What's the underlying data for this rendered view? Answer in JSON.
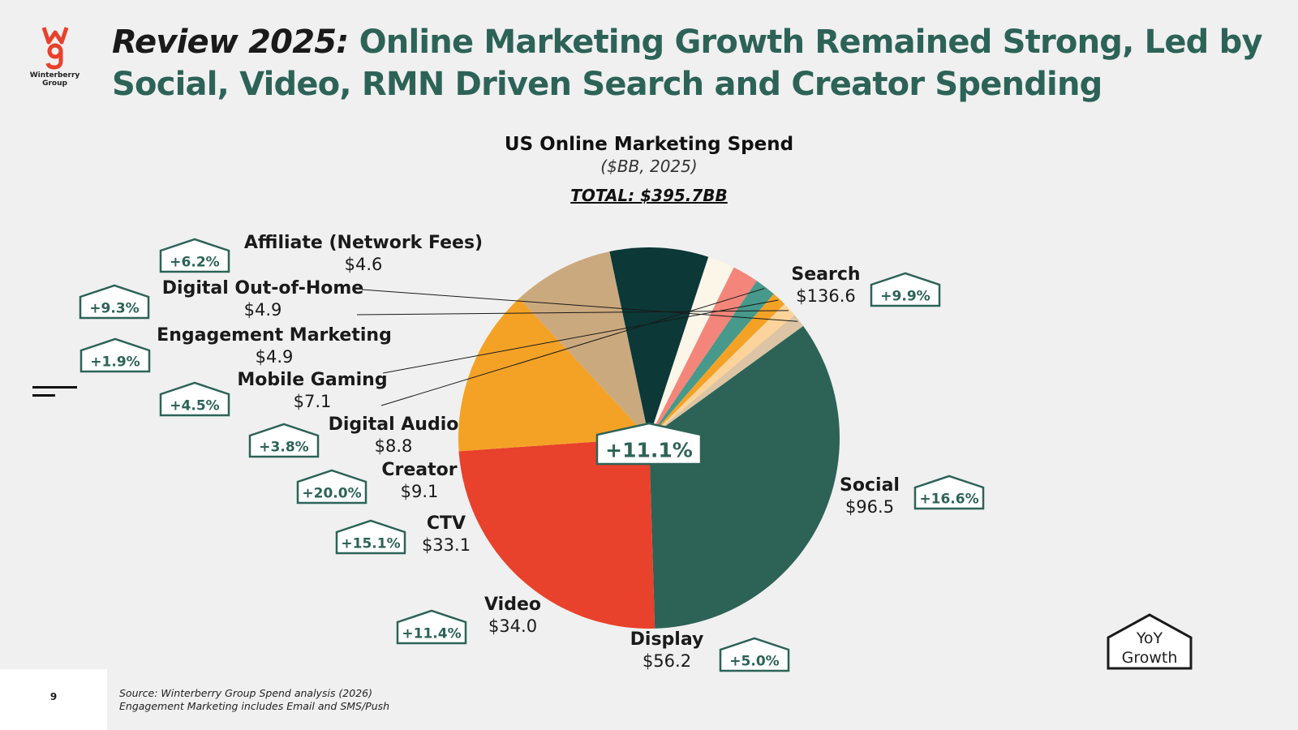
{
  "logo": {
    "mark": "wg",
    "text_line1": "Winterberry",
    "text_line2": "Group"
  },
  "title": {
    "lead": "Review 2025:",
    "rest": " Online Marketing Growth Remained Strong, Led by Social, Video, RMN Driven Search and Creator Spending"
  },
  "colors": {
    "brand_green": "#2d6357",
    "outline_green": "#2d6357"
  },
  "chart_data": {
    "type": "pie",
    "title": "US Online Marketing Spend",
    "subtitle": "($BB, 2025)",
    "total_label": "TOTAL: $395.7BB",
    "center_growth": "+11.1%",
    "slices": [
      {
        "name": "Search",
        "value": 136.6,
        "value_label": "$136.6",
        "growth": "+9.9%",
        "color": "#2d6357"
      },
      {
        "name": "Social",
        "value": 96.5,
        "value_label": "$96.5",
        "growth": "+16.6%",
        "color": "#e8412c"
      },
      {
        "name": "Display",
        "value": 56.2,
        "value_label": "$56.2",
        "growth": "+5.0%",
        "color": "#f4a226"
      },
      {
        "name": "Video",
        "value": 34.0,
        "value_label": "$34.0",
        "growth": "+11.4%",
        "color": "#cba97e"
      },
      {
        "name": "CTV",
        "value": 33.1,
        "value_label": "$33.1",
        "growth": "+15.1%",
        "color": "#0c3838"
      },
      {
        "name": "Creator",
        "value": 9.1,
        "value_label": "$9.1",
        "growth": "+20.0%",
        "color": "#fbf6e8"
      },
      {
        "name": "Digital Audio",
        "value": 8.8,
        "value_label": "$8.8",
        "growth": "+3.8%",
        "color": "#f4857a"
      },
      {
        "name": "Mobile Gaming",
        "value": 7.1,
        "value_label": "$7.1",
        "growth": "+4.5%",
        "color": "#46998b"
      },
      {
        "name": "Engagement Marketing",
        "value": 4.9,
        "value_label": "$4.9",
        "growth": "+1.9%",
        "color": "#f4a226"
      },
      {
        "name": "Digital Out-of-Home",
        "value": 4.9,
        "value_label": "$4.9",
        "growth": "+9.3%",
        "color": "#fcd39a"
      },
      {
        "name": "Affiliate (Network Fees)",
        "value": 4.6,
        "value_label": "$4.6",
        "growth": "+6.2%",
        "color": "#dcc4a4"
      }
    ]
  },
  "legend_key": {
    "label_line1": "YoY",
    "label_line2": "Growth"
  },
  "footer": {
    "page_number": "9",
    "source_line1": "Source: Winterberry Group Spend analysis (2026)",
    "source_line2": "Engagement Marketing includes Email and SMS/Push"
  }
}
